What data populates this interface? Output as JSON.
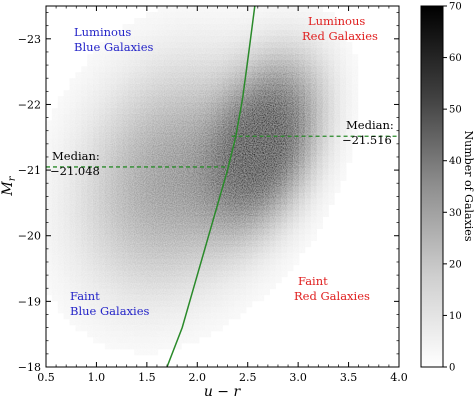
{
  "chart_data": {
    "type": "heatmap",
    "xlabel": "u − r",
    "ylabel": "M_r",
    "xlim": [
      0.5,
      4.0
    ],
    "ylim": [
      -18.0,
      -23.5
    ],
    "y_inverted": true,
    "xticks": [
      "0.5",
      "1.0",
      "1.5",
      "2.0",
      "2.5",
      "3.0",
      "3.5",
      "4.0"
    ],
    "yticks": [
      "−23",
      "−22",
      "−21",
      "−20",
      "−19",
      "−18"
    ],
    "ytick_values": [
      -23,
      -22,
      -21,
      -20,
      -19,
      -18
    ],
    "colorbar": {
      "label": "Number of Galaxies",
      "range": [
        0,
        70
      ],
      "ticks": [
        "0",
        "10",
        "20",
        "30",
        "40",
        "50",
        "60",
        "70"
      ],
      "colormap": "Greys"
    },
    "density_peaks": [
      {
        "x": 2.65,
        "y": -21.4,
        "peak_count": 70
      },
      {
        "x": 1.7,
        "y": -20.9,
        "peak_count": 28
      }
    ],
    "separator_curve": {
      "color": "#2a8a2a",
      "points": [
        [
          1.7,
          -18.0
        ],
        [
          1.85,
          -18.6
        ],
        [
          2.0,
          -19.4
        ],
        [
          2.15,
          -20.2
        ],
        [
          2.3,
          -21.0
        ],
        [
          2.38,
          -21.5
        ],
        [
          2.45,
          -22.1
        ],
        [
          2.52,
          -22.9
        ],
        [
          2.57,
          -23.5
        ]
      ]
    },
    "median_lines": [
      {
        "value": -21.048,
        "x_from": 0.5,
        "x_to": 2.3,
        "color": "#2a8a2a",
        "style": "dashed"
      },
      {
        "value": -21.516,
        "x_from": 2.34,
        "x_to": 4.0,
        "color": "#2a8a2a",
        "style": "dashed"
      }
    ],
    "annotations": [
      {
        "id": "lum-blue",
        "lines": [
          "Luminous",
          "Blue Galaxies"
        ],
        "color": "#2424c8"
      },
      {
        "id": "lum-red",
        "lines": [
          "Luminous",
          "Red Galaxies"
        ],
        "color": "#e02020"
      },
      {
        "id": "faint-blue",
        "lines": [
          "Faint",
          "Blue Galaxies"
        ],
        "color": "#2424c8"
      },
      {
        "id": "faint-red",
        "lines": [
          "Faint",
          "Red Galaxies"
        ],
        "color": "#e02020"
      },
      {
        "id": "median-left",
        "lines": [
          "Median:",
          "−21.048"
        ],
        "color": "#000000"
      },
      {
        "id": "median-right",
        "lines": [
          "Median:",
          "−21.516"
        ],
        "color": "#000000"
      }
    ]
  }
}
